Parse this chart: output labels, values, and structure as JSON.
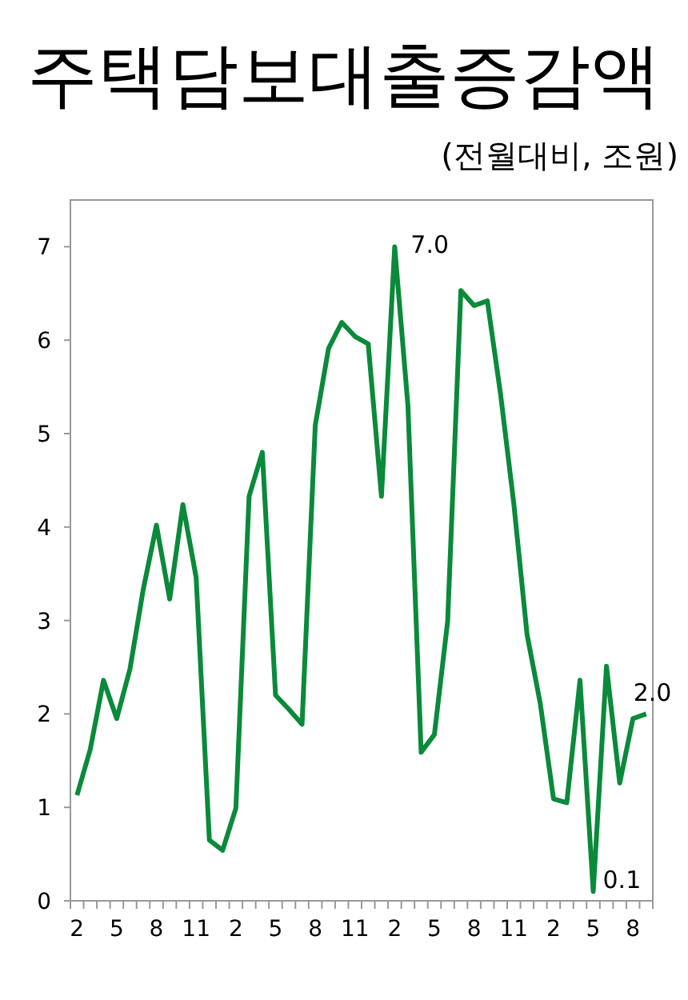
{
  "chart_data": {
    "type": "line",
    "title": "주택담보대출증감액",
    "subtitle": "(전월대비, 조원)",
    "categories": [
      "2",
      null,
      null,
      "5",
      null,
      null,
      "8",
      null,
      null,
      "11",
      null,
      null,
      "2",
      null,
      null,
      "5",
      null,
      null,
      "8",
      null,
      null,
      "11",
      null,
      null,
      "2",
      null,
      null,
      "5",
      null,
      null,
      "8",
      null,
      null,
      "11",
      null,
      null,
      "2",
      null,
      null,
      "5",
      null,
      null,
      "8",
      null
    ],
    "series": [
      {
        "color": "#0a8a3a",
        "values": [
          1.13,
          1.62,
          2.36,
          1.95,
          2.48,
          3.33,
          4.02,
          3.23,
          4.24,
          3.46,
          0.65,
          0.54,
          0.99,
          4.33,
          4.8,
          2.2,
          2.05,
          1.89,
          5.09,
          5.91,
          6.19,
          6.04,
          5.96,
          4.33,
          7.0,
          5.3,
          1.59,
          1.78,
          2.99,
          6.53,
          6.37,
          6.42,
          5.42,
          4.25,
          2.85,
          2.11,
          1.09,
          1.05,
          2.36,
          0.1,
          2.51,
          1.26,
          1.95,
          2.0
        ],
        "value_labels": [
          null,
          null,
          null,
          null,
          null,
          null,
          null,
          null,
          null,
          null,
          null,
          null,
          null,
          null,
          null,
          null,
          null,
          null,
          null,
          null,
          null,
          null,
          null,
          null,
          "7.0",
          null,
          null,
          null,
          null,
          null,
          null,
          null,
          null,
          null,
          null,
          null,
          null,
          null,
          null,
          "0.1",
          null,
          null,
          null,
          "2.0"
        ]
      }
    ],
    "ylim": [
      0,
      7.5
    ],
    "yticks": [
      0,
      1,
      2,
      3,
      4,
      5,
      6,
      7
    ],
    "grid": false,
    "marker": "none",
    "line_style": "solid"
  }
}
